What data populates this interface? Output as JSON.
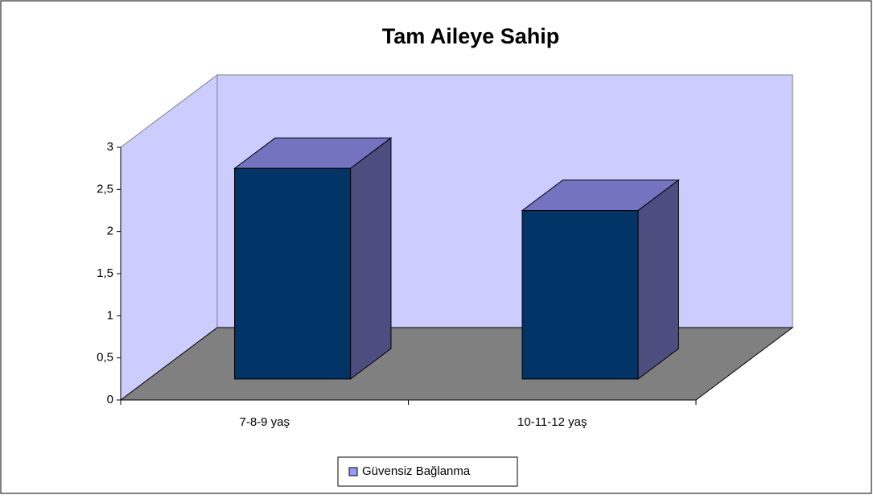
{
  "chart_data": {
    "type": "bar3d",
    "title": "Tam Aileye Sahip",
    "categories": [
      "7-8-9 yaş",
      "10-11-12 yaş"
    ],
    "series": [
      {
        "name": "Güvensiz Bağlanma",
        "color": "#003366",
        "values": [
          2.5,
          2
        ]
      }
    ],
    "ylim": [
      0,
      3
    ],
    "yticks": [
      0,
      {
        "value": 0.5,
        "label": "0,5"
      },
      1,
      {
        "value": 1.5,
        "label": "1,5"
      },
      2,
      {
        "value": 2.5,
        "label": "2,5"
      },
      3
    ],
    "legend": "bottom"
  }
}
